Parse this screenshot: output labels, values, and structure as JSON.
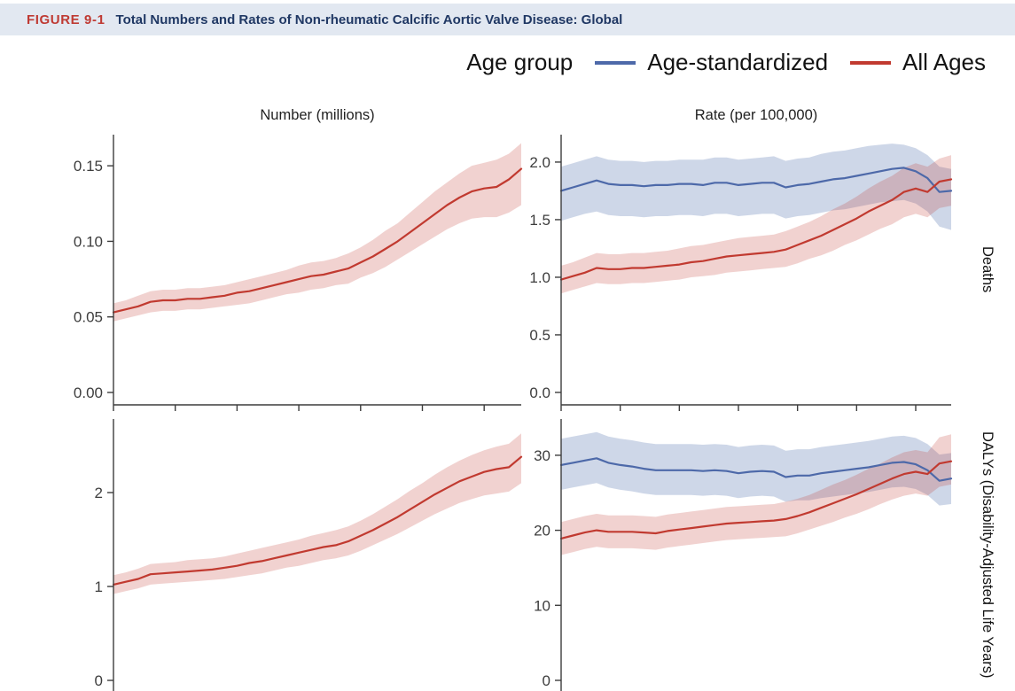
{
  "header": {
    "figure_label": "FIGURE 9-1",
    "title": "Total Numbers and Rates of Non-rheumatic Calcific Aortic Valve Disease: Global"
  },
  "legend": {
    "title": "Age group",
    "items": [
      {
        "label": "Age-standardized",
        "color": "#4d69a9"
      },
      {
        "label": "All Ages",
        "color": "#c13a30"
      }
    ]
  },
  "columns": [
    {
      "title": "Number (millions)"
    },
    {
      "title": "Rate (per 100,000)"
    }
  ],
  "rows": [
    {
      "label": "Deaths"
    },
    {
      "label": "DALYs (Disability-Adjusted Life Years)"
    }
  ],
  "colors": {
    "header_bg": "#e2e8f1",
    "figure_label_red": "#bf3a33",
    "title_navy": "#203864",
    "axis": "#3d3d3d",
    "blue_line": "#4d69a9",
    "blue_band": "rgba(93,121,179,0.30)",
    "red_line": "#c13a30",
    "red_band": "rgba(196,60,50,0.23)"
  },
  "chart_data": [
    {
      "id": "deaths-number",
      "type": "line",
      "title": "Number (millions)",
      "row_label": "Deaths",
      "x": {
        "min": 1990,
        "max": 2023,
        "tick_years": [
          1990,
          1995,
          2000,
          2005,
          2010,
          2015,
          2020
        ],
        "tick_labels_visible": false
      },
      "ylim": [
        -0.0082,
        0.1706
      ],
      "y_ticks": [
        {
          "value": 0.15,
          "label": "0.15"
        },
        {
          "value": 0.1,
          "label": "0.10"
        },
        {
          "value": 0.05,
          "label": "0.05"
        },
        {
          "value": 0.0,
          "label": "0.00"
        }
      ],
      "series": [
        {
          "name": "All Ages",
          "color": "#c13a30",
          "band_color": "rgba(196,60,50,0.23)",
          "values": [
            0.053,
            0.055,
            0.057,
            0.06,
            0.061,
            0.061,
            0.062,
            0.062,
            0.063,
            0.064,
            0.066,
            0.067,
            0.069,
            0.071,
            0.073,
            0.075,
            0.077,
            0.078,
            0.08,
            0.082,
            0.086,
            0.09,
            0.095,
            0.1,
            0.106,
            0.112,
            0.118,
            0.124,
            0.129,
            0.133,
            0.135,
            0.136,
            0.141,
            0.148
          ],
          "lower": [
            0.047,
            0.049,
            0.051,
            0.053,
            0.054,
            0.054,
            0.055,
            0.055,
            0.056,
            0.057,
            0.058,
            0.059,
            0.061,
            0.063,
            0.065,
            0.066,
            0.068,
            0.069,
            0.071,
            0.072,
            0.076,
            0.079,
            0.083,
            0.088,
            0.093,
            0.098,
            0.103,
            0.108,
            0.112,
            0.115,
            0.116,
            0.116,
            0.119,
            0.124
          ],
          "upper": [
            0.059,
            0.061,
            0.064,
            0.067,
            0.068,
            0.068,
            0.069,
            0.069,
            0.07,
            0.071,
            0.073,
            0.075,
            0.077,
            0.079,
            0.081,
            0.084,
            0.086,
            0.087,
            0.089,
            0.092,
            0.096,
            0.101,
            0.107,
            0.112,
            0.119,
            0.126,
            0.133,
            0.139,
            0.145,
            0.15,
            0.152,
            0.154,
            0.158,
            0.165
          ]
        }
      ]
    },
    {
      "id": "deaths-rate",
      "type": "line",
      "title": "Rate (per 100,000)",
      "row_label": "Deaths",
      "x": {
        "min": 1990,
        "max": 2023,
        "tick_years": [
          1990,
          1995,
          2000,
          2005,
          2010,
          2015,
          2020
        ],
        "tick_labels_visible": false
      },
      "ylim": [
        -0.108,
        2.238
      ],
      "y_ticks": [
        {
          "value": 2.0,
          "label": "2.0"
        },
        {
          "value": 1.5,
          "label": "1.5"
        },
        {
          "value": 1.0,
          "label": "1.0"
        },
        {
          "value": 0.5,
          "label": "0.5"
        },
        {
          "value": 0.0,
          "label": "0.0"
        }
      ],
      "series": [
        {
          "name": "Age-standardized",
          "color": "#4d69a9",
          "band_color": "rgba(93,121,179,0.30)",
          "values": [
            1.75,
            1.78,
            1.81,
            1.84,
            1.81,
            1.8,
            1.8,
            1.79,
            1.8,
            1.8,
            1.81,
            1.81,
            1.8,
            1.82,
            1.82,
            1.8,
            1.81,
            1.82,
            1.82,
            1.78,
            1.8,
            1.81,
            1.83,
            1.85,
            1.86,
            1.88,
            1.9,
            1.92,
            1.94,
            1.95,
            1.92,
            1.86,
            1.74,
            1.75
          ],
          "lower": [
            1.49,
            1.52,
            1.55,
            1.57,
            1.54,
            1.53,
            1.53,
            1.52,
            1.53,
            1.53,
            1.54,
            1.54,
            1.53,
            1.55,
            1.55,
            1.53,
            1.54,
            1.55,
            1.55,
            1.51,
            1.53,
            1.54,
            1.56,
            1.58,
            1.59,
            1.61,
            1.63,
            1.65,
            1.66,
            1.67,
            1.64,
            1.57,
            1.44,
            1.41
          ],
          "upper": [
            1.96,
            1.99,
            2.02,
            2.05,
            2.02,
            2.01,
            2.01,
            2.0,
            2.01,
            2.01,
            2.02,
            2.02,
            2.02,
            2.04,
            2.04,
            2.02,
            2.03,
            2.04,
            2.05,
            2.01,
            2.03,
            2.04,
            2.07,
            2.09,
            2.1,
            2.12,
            2.14,
            2.15,
            2.16,
            2.15,
            2.12,
            2.06,
            1.96,
            1.94
          ]
        },
        {
          "name": "All Ages",
          "color": "#c13a30",
          "band_color": "rgba(196,60,50,0.23)",
          "values": [
            0.98,
            1.01,
            1.04,
            1.08,
            1.07,
            1.07,
            1.08,
            1.08,
            1.09,
            1.1,
            1.11,
            1.13,
            1.14,
            1.16,
            1.18,
            1.19,
            1.2,
            1.21,
            1.22,
            1.24,
            1.28,
            1.32,
            1.36,
            1.41,
            1.46,
            1.51,
            1.57,
            1.62,
            1.67,
            1.74,
            1.77,
            1.74,
            1.83,
            1.85
          ],
          "lower": [
            0.86,
            0.89,
            0.92,
            0.95,
            0.94,
            0.94,
            0.95,
            0.95,
            0.96,
            0.97,
            0.98,
            1.0,
            1.01,
            1.02,
            1.04,
            1.05,
            1.06,
            1.07,
            1.08,
            1.09,
            1.12,
            1.16,
            1.19,
            1.23,
            1.28,
            1.32,
            1.37,
            1.42,
            1.46,
            1.52,
            1.55,
            1.52,
            1.6,
            1.62
          ],
          "upper": [
            1.1,
            1.13,
            1.17,
            1.21,
            1.2,
            1.2,
            1.21,
            1.21,
            1.22,
            1.23,
            1.25,
            1.27,
            1.28,
            1.3,
            1.32,
            1.34,
            1.35,
            1.36,
            1.37,
            1.4,
            1.44,
            1.48,
            1.53,
            1.59,
            1.64,
            1.7,
            1.77,
            1.83,
            1.88,
            1.95,
            1.99,
            1.96,
            2.03,
            2.06
          ]
        }
      ]
    },
    {
      "id": "dalys-number",
      "type": "line",
      "title": "Number (millions)",
      "row_label": "DALYs (Disability-Adjusted Life Years)",
      "x": {
        "min": 1990,
        "max": 2023,
        "tick_years": [
          1990,
          1995,
          2000,
          2005,
          2010,
          2015,
          2020
        ],
        "tick_labels_visible": false
      },
      "ylim": [
        -0.113,
        2.783
      ],
      "y_ticks": [
        {
          "value": 2,
          "label": "2"
        },
        {
          "value": 1,
          "label": "1"
        },
        {
          "value": 0,
          "label": "0"
        }
      ],
      "series": [
        {
          "name": "All Ages",
          "color": "#c13a30",
          "band_color": "rgba(196,60,50,0.23)",
          "values": [
            1.02,
            1.05,
            1.08,
            1.13,
            1.14,
            1.15,
            1.16,
            1.17,
            1.18,
            1.2,
            1.22,
            1.25,
            1.27,
            1.3,
            1.33,
            1.36,
            1.39,
            1.42,
            1.44,
            1.48,
            1.54,
            1.6,
            1.67,
            1.74,
            1.82,
            1.9,
            1.98,
            2.05,
            2.12,
            2.17,
            2.22,
            2.25,
            2.27,
            2.38
          ],
          "lower": [
            0.92,
            0.95,
            0.98,
            1.02,
            1.03,
            1.04,
            1.05,
            1.06,
            1.07,
            1.08,
            1.1,
            1.12,
            1.14,
            1.17,
            1.2,
            1.22,
            1.25,
            1.28,
            1.3,
            1.33,
            1.38,
            1.44,
            1.5,
            1.56,
            1.63,
            1.7,
            1.77,
            1.83,
            1.89,
            1.93,
            1.97,
            1.99,
            2.01,
            2.1
          ],
          "upper": [
            1.12,
            1.15,
            1.19,
            1.24,
            1.25,
            1.26,
            1.28,
            1.29,
            1.3,
            1.32,
            1.35,
            1.38,
            1.41,
            1.44,
            1.47,
            1.5,
            1.54,
            1.57,
            1.6,
            1.64,
            1.7,
            1.77,
            1.85,
            1.93,
            2.02,
            2.1,
            2.19,
            2.27,
            2.34,
            2.4,
            2.45,
            2.49,
            2.52,
            2.63
          ]
        }
      ]
    },
    {
      "id": "dalys-rate",
      "type": "line",
      "title": "Rate (per 100,000)",
      "row_label": "DALYs (Disability-Adjusted Life Years)",
      "x": {
        "min": 1990,
        "max": 2023,
        "tick_years": [
          1990,
          1995,
          2000,
          2005,
          2010,
          2015,
          2020
        ],
        "tick_labels_visible": false
      },
      "ylim": [
        -1.42,
        34.83
      ],
      "y_ticks": [
        {
          "value": 30,
          "label": "30"
        },
        {
          "value": 20,
          "label": "20"
        },
        {
          "value": 10,
          "label": "10"
        },
        {
          "value": 0,
          "label": "0"
        }
      ],
      "series": [
        {
          "name": "Age-standardized",
          "color": "#4d69a9",
          "band_color": "rgba(93,121,179,0.30)",
          "values": [
            28.7,
            29.0,
            29.3,
            29.6,
            29.0,
            28.7,
            28.5,
            28.2,
            28.0,
            28.0,
            28.0,
            28.0,
            27.9,
            28.0,
            27.9,
            27.6,
            27.8,
            27.9,
            27.8,
            27.1,
            27.3,
            27.3,
            27.6,
            27.8,
            28.0,
            28.2,
            28.4,
            28.7,
            29.0,
            29.1,
            28.8,
            28.0,
            26.6,
            26.9
          ],
          "lower": [
            25.4,
            25.7,
            26.0,
            26.3,
            25.7,
            25.4,
            25.2,
            24.9,
            24.7,
            24.7,
            24.7,
            24.7,
            24.6,
            24.7,
            24.6,
            24.3,
            24.5,
            24.6,
            24.5,
            23.8,
            24.0,
            24.0,
            24.3,
            24.5,
            24.7,
            24.9,
            25.1,
            25.4,
            25.7,
            25.8,
            25.5,
            24.7,
            23.3,
            23.5
          ],
          "upper": [
            32.2,
            32.5,
            32.8,
            33.1,
            32.5,
            32.2,
            32.0,
            31.7,
            31.5,
            31.5,
            31.5,
            31.5,
            31.4,
            31.5,
            31.4,
            31.1,
            31.3,
            31.4,
            31.3,
            30.6,
            30.8,
            30.8,
            31.1,
            31.3,
            31.5,
            31.7,
            31.9,
            32.2,
            32.5,
            32.6,
            32.3,
            31.5,
            30.1,
            30.3
          ]
        },
        {
          "name": "All Ages",
          "color": "#c13a30",
          "band_color": "rgba(196,60,50,0.23)",
          "values": [
            18.9,
            19.3,
            19.7,
            20.0,
            19.8,
            19.8,
            19.8,
            19.7,
            19.6,
            19.9,
            20.1,
            20.3,
            20.5,
            20.7,
            20.9,
            21.0,
            21.1,
            21.2,
            21.3,
            21.5,
            21.9,
            22.4,
            23.0,
            23.6,
            24.2,
            24.8,
            25.5,
            26.2,
            26.9,
            27.5,
            27.8,
            27.5,
            28.9,
            29.2
          ],
          "lower": [
            16.7,
            17.1,
            17.5,
            17.8,
            17.6,
            17.6,
            17.6,
            17.5,
            17.4,
            17.7,
            17.9,
            18.1,
            18.3,
            18.5,
            18.7,
            18.8,
            18.9,
            19.0,
            19.1,
            19.2,
            19.6,
            20.1,
            20.6,
            21.1,
            21.7,
            22.2,
            22.8,
            23.5,
            24.1,
            24.6,
            24.9,
            24.6,
            25.8,
            26.1
          ],
          "upper": [
            21.1,
            21.5,
            21.9,
            22.2,
            22.0,
            22.0,
            22.0,
            21.9,
            21.8,
            22.1,
            22.3,
            22.5,
            22.7,
            22.9,
            23.1,
            23.2,
            23.3,
            23.4,
            23.5,
            23.8,
            24.2,
            24.7,
            25.4,
            26.1,
            26.7,
            27.4,
            28.2,
            28.9,
            29.7,
            30.4,
            30.7,
            30.4,
            32.4,
            32.8
          ]
        }
      ]
    }
  ]
}
